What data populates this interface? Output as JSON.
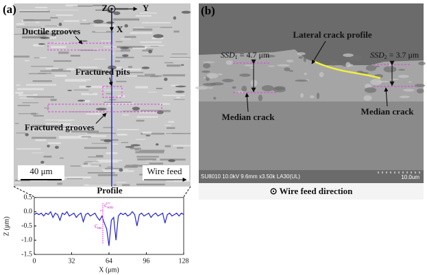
{
  "panel_a": {
    "label": "(a)",
    "axis_z": "Z",
    "axis_y": "Y",
    "axis_x": "X",
    "annotations": [
      "Ductile grooves",
      "Fractured pits",
      "Fractured grooves"
    ],
    "scale_bar": "40 μm",
    "direction": "Wire feed"
  },
  "panel_b": {
    "label": "(b)",
    "lateral_crack": "Lateral crack profile",
    "ssd_1": {
      "main": "SSD",
      "sub": "1",
      "rest": " = 4.7 μm"
    },
    "ssd_2": {
      "main": "SSD",
      "sub": "2",
      "rest": " = 3.7 μm"
    },
    "median_crack_left": "Median crack",
    "median_crack_right": "Median crack",
    "sem_info": "SU8010 10.0kV 9.6mm x3.50k LA30(UL)",
    "sem_scale": "10.0um",
    "caption": "⊙ Wire feed direction"
  },
  "chart_data": {
    "type": "line",
    "title": "Profile",
    "xlabel": "X (μm)",
    "ylabel": "Z (μm)",
    "annotations": [
      {
        "main": "c",
        "sub": "wm"
      },
      {
        "main": "c",
        "sub": "im"
      }
    ],
    "x": [
      0,
      2,
      4,
      6,
      8,
      10,
      12,
      14,
      16,
      18,
      20,
      22,
      24,
      26,
      28,
      30,
      32,
      34,
      36,
      38,
      40,
      42,
      44,
      46,
      48,
      50,
      52,
      54,
      56,
      58,
      60,
      62,
      64,
      66,
      68,
      70,
      72,
      74,
      76,
      78,
      80,
      82,
      84,
      86,
      88,
      90,
      92,
      94,
      96,
      98,
      100,
      102,
      104,
      106,
      108,
      110,
      112,
      114,
      116,
      118,
      120,
      122,
      124,
      126,
      128
    ],
    "series": [
      {
        "name": "Profile",
        "color": "#1f1fd0",
        "values": [
          -0.1,
          -0.05,
          -0.1,
          -0.05,
          -0.15,
          -0.05,
          -0.1,
          0.0,
          -0.2,
          -0.05,
          -0.1,
          -0.3,
          -0.05,
          -0.1,
          0.0,
          -0.15,
          -0.1,
          -0.05,
          -0.2,
          -0.1,
          -0.05,
          -0.35,
          -0.1,
          -0.05,
          -0.15,
          -0.1,
          -0.05,
          -0.2,
          -0.3,
          -0.15,
          -0.4,
          -0.6,
          -1.2,
          -0.3,
          -0.2,
          -1.0,
          -0.15,
          -0.05,
          -0.1,
          -0.05,
          -0.15,
          -0.1,
          0.0,
          -0.1,
          -0.5,
          -0.1,
          -0.05,
          -0.15,
          -0.1,
          -0.05,
          -0.2,
          -0.1,
          -0.05,
          -0.15,
          -0.1,
          -0.05,
          -0.4,
          -0.1,
          -0.05,
          -0.15,
          -0.1,
          -0.05,
          -0.15,
          -0.05,
          -0.1
        ]
      }
    ],
    "xlim": [
      0,
      128
    ],
    "ylim": [
      -1.5,
      0.5
    ],
    "xticks": [
      0,
      32,
      64,
      96,
      128
    ],
    "yticks": [
      0.5,
      {
        "value": 0,
        "label": "0.0"
      },
      -0.5,
      {
        "value": -1,
        "label": "-1.0"
      },
      -1.5
    ]
  }
}
